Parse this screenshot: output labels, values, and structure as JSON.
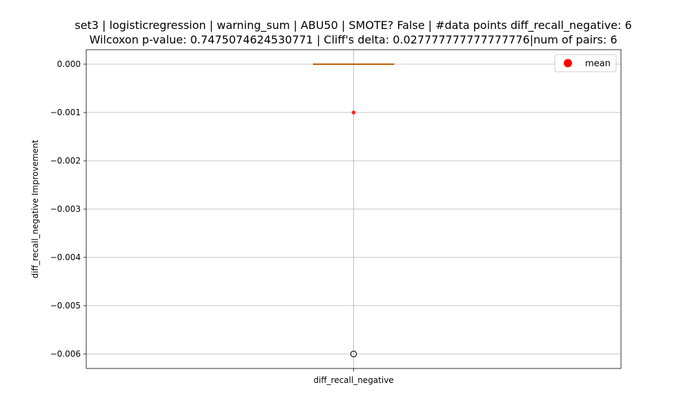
{
  "title": {
    "line1": "set3 | logisticregression | warning_sum | ABU50 | SMOTE? False | #data points diff_recall_negative: 6",
    "line2": "Wilcoxon p-value: 0.7475074624530771 | Cliff's delta: 0.027777777777777776|num of pairs: 6"
  },
  "chart_data": {
    "type": "box",
    "title": "set3 | logisticregression | warning_sum | ABU50 | SMOTE? False | #data points diff_recall_negative: 6\nWilcoxon p-value: 0.7475074624530771 | Cliff's delta: 0.027777777777777776|num of pairs: 6",
    "xlabel": "",
    "ylabel": "diff_recall_negative Improvement",
    "categories": [
      "diff_recall_negative"
    ],
    "ylim": [
      -0.0063,
      0.0003
    ],
    "yticks": [
      0.0,
      -0.001,
      -0.002,
      -0.003,
      -0.004,
      -0.005,
      -0.006
    ],
    "ytick_labels": [
      "0.000",
      "−0.001",
      "−0.002",
      "−0.003",
      "−0.004",
      "−0.005",
      "−0.006"
    ],
    "grid": true,
    "legend": {
      "placement": "top-right",
      "entries": [
        {
          "label": "mean",
          "marker": "circle",
          "color": "#ff0000"
        }
      ]
    },
    "box": {
      "category": "diff_recall_negative",
      "q1": 0.0,
      "median": 0.0,
      "q3": 0.0,
      "whisker_low": 0.0,
      "whisker_high": 0.0,
      "mean": -0.001,
      "outliers": [
        -0.006
      ]
    },
    "colors": {
      "box_edge": "#000000",
      "median": "#ff7f0e",
      "mean": "#ff0000",
      "outlier_edge": "#000000",
      "grid": "#b0b0b0"
    }
  }
}
